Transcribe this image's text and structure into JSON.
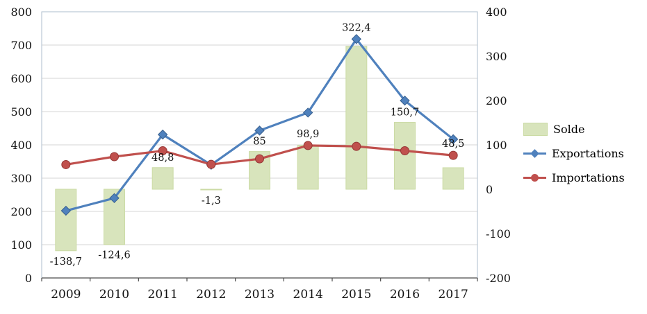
{
  "chart_data": {
    "type": "combo",
    "categories": [
      "2009",
      "2010",
      "2011",
      "2012",
      "2013",
      "2014",
      "2015",
      "2016",
      "2017"
    ],
    "series": [
      {
        "name": "Solde",
        "type": "bar",
        "axis": "right",
        "color": "#d8e4bc",
        "border_color": "#cbdba5",
        "values": [
          -138.7,
          -124.6,
          48.8,
          -1.3,
          85,
          98.9,
          322.4,
          150.7,
          48.5
        ],
        "labels": [
          "-138,7",
          "-124,6",
          "48,8",
          "-1,3",
          "85",
          "98,9",
          "322,4",
          "150,7",
          "48,5"
        ]
      },
      {
        "name": "Exportations",
        "type": "line",
        "axis": "left",
        "color": "#4f81bd",
        "marker": "diamond",
        "marker_border": "#38608f",
        "values": [
          202,
          240,
          431,
          340,
          443,
          497,
          718,
          533,
          417
        ]
      },
      {
        "name": "Importations",
        "type": "line",
        "axis": "left",
        "color": "#c0504d",
        "marker": "circle",
        "marker_border": "#953735",
        "values": [
          340.7,
          364.6,
          382.2,
          341.3,
          358,
          398.1,
          395.6,
          382.3,
          368.5
        ]
      }
    ],
    "left_axis": {
      "min": 0,
      "max": 800,
      "step": 100,
      "tick_labels": [
        "0",
        "100",
        "200",
        "300",
        "400",
        "500",
        "600",
        "700",
        "800"
      ]
    },
    "right_axis": {
      "min": -200,
      "max": 400,
      "step": 100,
      "tick_labels": [
        "-200",
        "-100",
        "0",
        "100",
        "200",
        "300",
        "400"
      ]
    },
    "grid": true,
    "legend_position": "right",
    "colors": {
      "grid": "#d6d6d6",
      "plot_border": "#aebdcc",
      "axis_line": "#4a4a4a",
      "text": "#111111",
      "background": "#ffffff"
    }
  }
}
